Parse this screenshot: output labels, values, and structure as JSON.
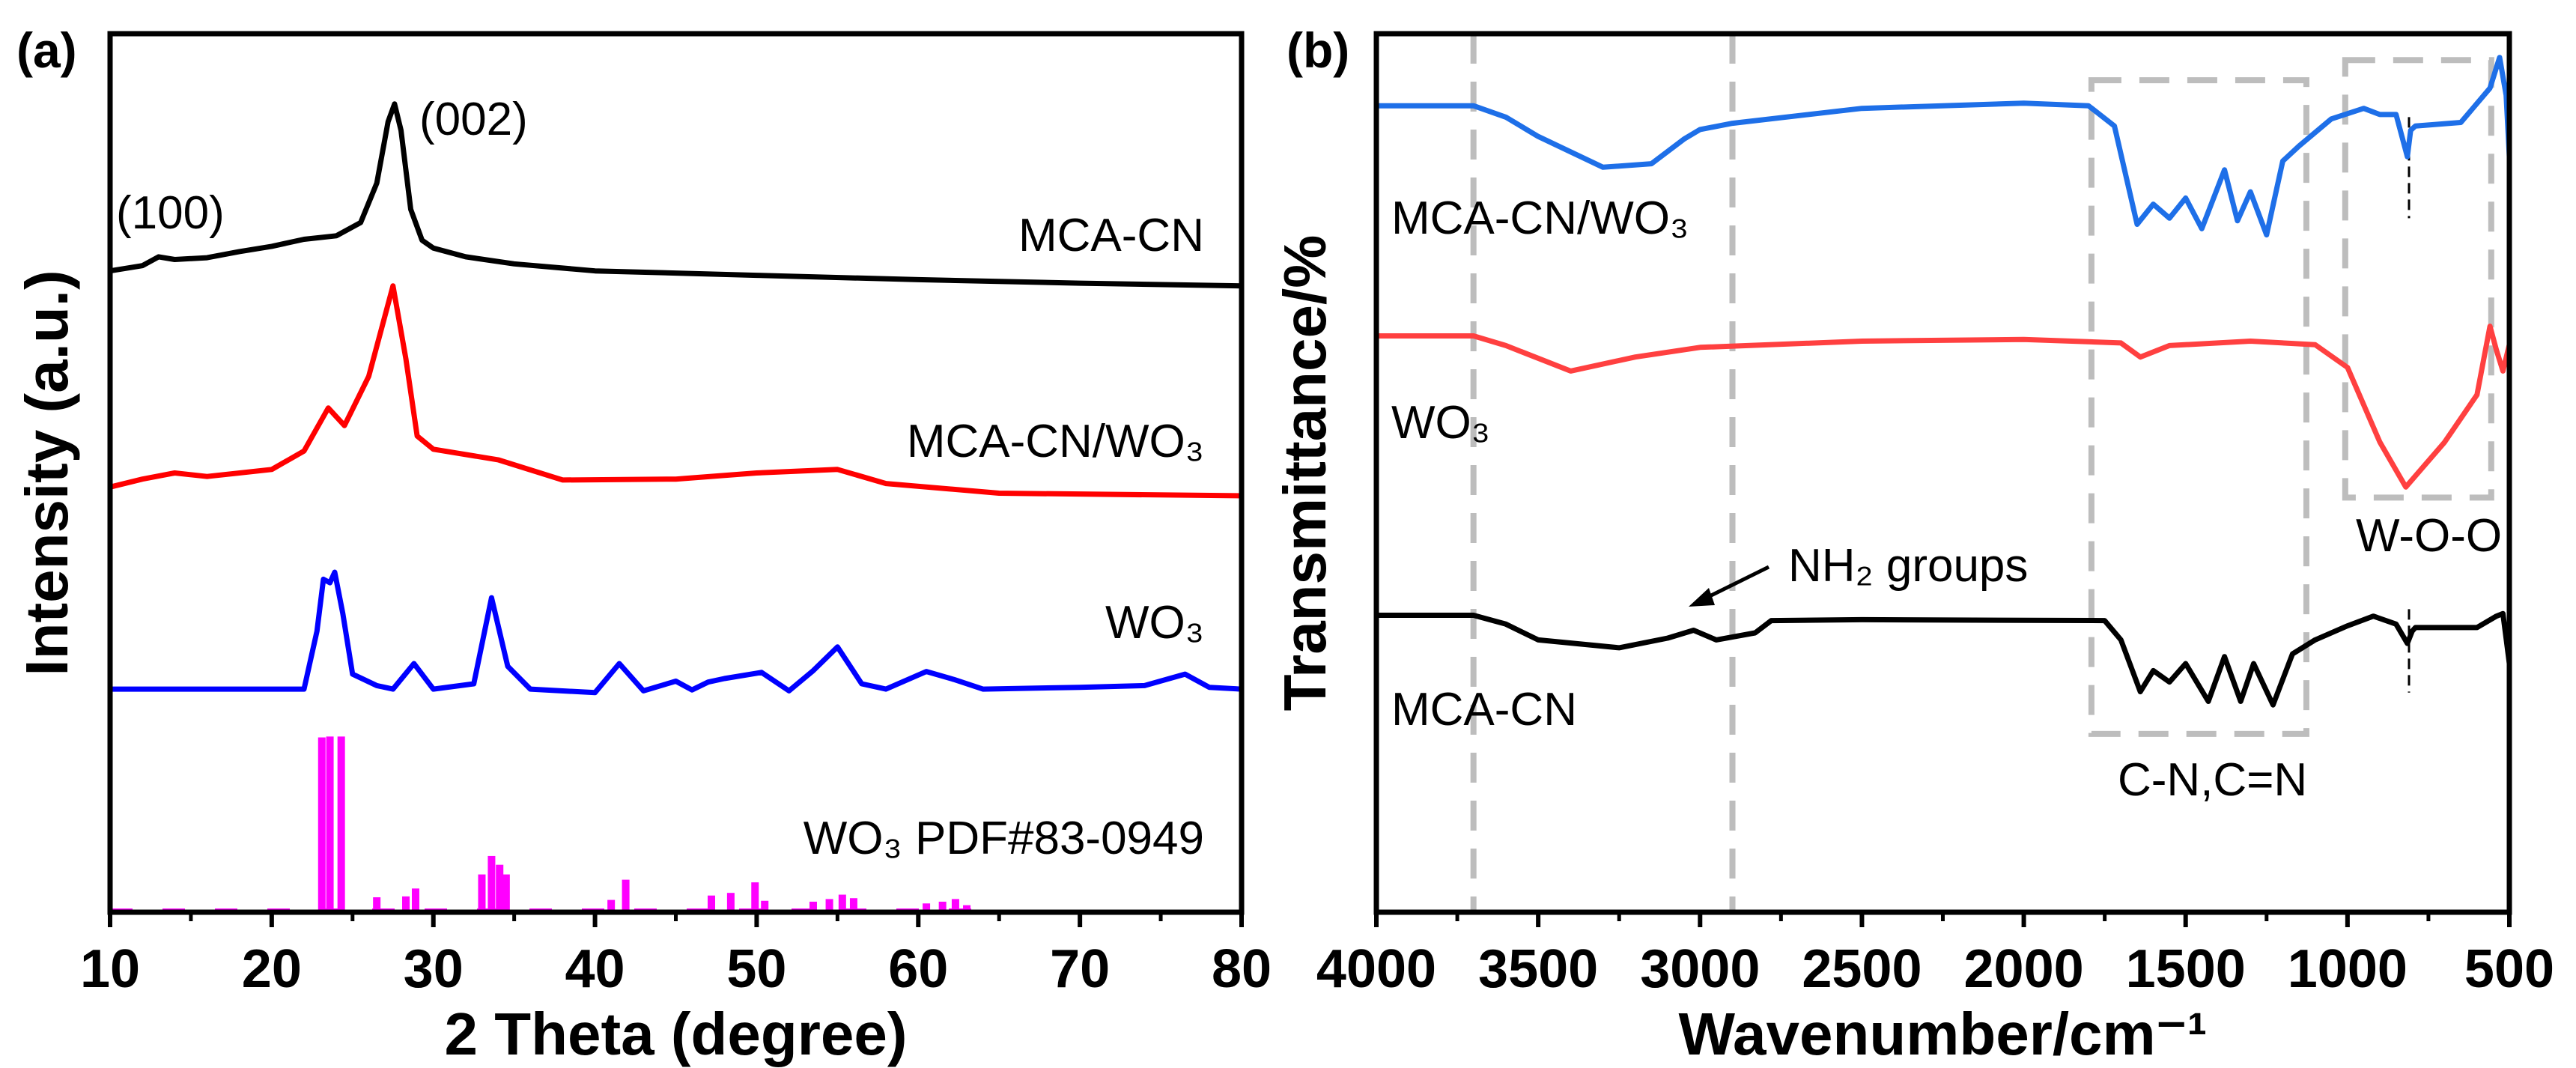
{
  "chart_data": [
    {
      "panel_label": "(a)",
      "type": "line",
      "xlabel": "2 Theta (degree)",
      "ylabel": "Intensity (a.u.)",
      "xlim": [
        10,
        80
      ],
      "ylim": [
        0,
        100
      ],
      "xticks": [
        "10",
        "20",
        "30",
        "40",
        "50",
        "60",
        "70",
        "80"
      ],
      "grid": false,
      "annotations": [
        {
          "text": "(002)",
          "x": 29.5,
          "y": 91
        },
        {
          "text": "(100)",
          "x": 11,
          "y": 78
        }
      ],
      "series": [
        {
          "name": "MCA-CN",
          "color": "#000000",
          "x": [
            10,
            12,
            13,
            14,
            16,
            18,
            20,
            22,
            24,
            25.5,
            26.5,
            27.2,
            27.6,
            28,
            28.6,
            29.3,
            30,
            32,
            35,
            40,
            50,
            60,
            70,
            80
          ],
          "y": [
            73,
            73.6,
            74.6,
            74.3,
            74.5,
            75.2,
            75.8,
            76.6,
            77,
            78.5,
            83,
            90,
            92,
            89,
            80,
            76.5,
            75.6,
            74.6,
            73.8,
            73,
            72.5,
            72,
            71.6,
            71.3
          ]
        },
        {
          "name": "MCA-CN/WO₃",
          "color": "#ff0000",
          "x": [
            10,
            12,
            14,
            16,
            20,
            22,
            23.5,
            24.5,
            26,
            27.5,
            28.3,
            29,
            30,
            34,
            38,
            45,
            50,
            55,
            58,
            65,
            80
          ],
          "y": [
            48.4,
            49.3,
            50,
            49.6,
            50.4,
            52.5,
            57.4,
            55.4,
            61,
            71.3,
            63,
            54.2,
            52.7,
            51.5,
            49.2,
            49.3,
            50,
            50.4,
            48.8,
            47.7,
            47.4
          ]
        },
        {
          "name": "WO₃",
          "color": "#0000ff",
          "x": [
            10,
            22,
            22.8,
            23.2,
            23.6,
            23.9,
            24.4,
            25,
            26.5,
            27.5,
            28.8,
            30,
            32.5,
            33.6,
            34.6,
            36,
            40,
            41.5,
            43,
            45,
            46,
            47,
            48,
            50.3,
            52,
            53.5,
            55,
            56.5,
            58,
            60.5,
            62.2,
            64,
            70,
            74,
            76.5,
            78,
            80
          ],
          "y": [
            25.4,
            25.4,
            32,
            37.9,
            37.5,
            38.7,
            34,
            27.1,
            25.8,
            25.4,
            28.3,
            25.4,
            26,
            35.8,
            28,
            25.4,
            25,
            28.3,
            25.2,
            26.3,
            25.3,
            26.2,
            26.6,
            27.3,
            25.2,
            27.5,
            30.2,
            26,
            25.4,
            27.4,
            26.5,
            25.4,
            25.6,
            25.8,
            27.1,
            25.6,
            25.4
          ]
        },
        {
          "name": "WO₃ PDF#83-0949",
          "type": "stick",
          "color": "#ff00ff",
          "x": [
            23.1,
            23.6,
            24.3,
            26.5,
            28.3,
            28.9,
            33,
            33.6,
            34.1,
            34.5,
            41,
            41.9,
            47.2,
            48.4,
            49.9,
            50.5,
            53.5,
            54.5,
            55.3,
            56,
            60.5,
            61.5,
            62.3,
            63
          ],
          "y": [
            19.9,
            20,
            20,
            1.7,
            1.8,
            2.7,
            4.3,
            6.4,
            5.4,
            4.3,
            1.4,
            3.7,
            1.9,
            2.2,
            3.4,
            1.3,
            1.2,
            1.5,
            2,
            1.6,
            1,
            1.2,
            1.5,
            0.8
          ]
        }
      ],
      "series_labels": [
        "MCA-CN",
        "MCA-CN/WO₃",
        "WO₃",
        "WO₃ PDF#83-0949"
      ]
    },
    {
      "panel_label": "(b)",
      "type": "line",
      "xlabel": "Wavenumber/cm⁻¹",
      "ylabel": "Transmittance/%",
      "xlim": [
        4000,
        500
      ],
      "ylim": [
        0,
        100
      ],
      "xticks": [
        "4000",
        "3500",
        "3000",
        "2500",
        "2000",
        "1500",
        "1000",
        "500"
      ],
      "grid": false,
      "reference_lines": [
        3700,
        2900,
        810
      ],
      "boxes": [
        {
          "label": "C-N,C=N",
          "x": [
            1791,
            1127
          ],
          "y": [
            20.3,
            94.7
          ]
        },
        {
          "label": "W-O-O",
          "x": [
            1007,
            556
          ],
          "y": [
            47.2,
            97
          ]
        }
      ],
      "annotation": {
        "text": "NH₂ groups",
        "points_to": [
          3030,
          35
        ]
      },
      "series": [
        {
          "name": "MCA-CN/WO₃",
          "color": "#1e6fe8",
          "x": [
            4000,
            3700,
            3600,
            3500,
            3300,
            3150,
            3050,
            3000,
            2900,
            2500,
            2000,
            1800,
            1720,
            1650,
            1600,
            1550,
            1500,
            1450,
            1380,
            1340,
            1300,
            1250,
            1200,
            1150,
            1050,
            950,
            900,
            850,
            815,
            805,
            790,
            650,
            560,
            530,
            510,
            500
          ],
          "y": [
            91.8,
            91.8,
            90.5,
            88.3,
            84.8,
            85.2,
            88,
            89.1,
            89.8,
            91.5,
            92.1,
            91.8,
            89.5,
            78.3,
            80.6,
            79,
            81.3,
            77.8,
            84.5,
            78.7,
            82,
            77.1,
            85.5,
            87.2,
            90.3,
            91.5,
            90.8,
            90.8,
            86,
            89,
            89.5,
            89.9,
            93.8,
            97.3,
            93,
            86
          ]
        },
        {
          "name": "WO₃",
          "color": "#ff4040",
          "x": [
            4000,
            3700,
            3600,
            3400,
            3200,
            3000,
            2500,
            2000,
            1700,
            1640,
            1550,
            1300,
            1100,
            1000,
            900,
            820,
            700,
            600,
            560,
            540,
            520,
            500
          ],
          "y": [
            65.6,
            65.6,
            64.5,
            61.6,
            63.2,
            64.3,
            65,
            65.2,
            64.8,
            63.2,
            64.5,
            65,
            64.6,
            62,
            53.5,
            48.4,
            53.5,
            58.9,
            66.7,
            64,
            61.6,
            64.6
          ]
        },
        {
          "name": "MCA-CN",
          "color": "#000000",
          "x": [
            4000,
            3700,
            3600,
            3500,
            3250,
            3100,
            3020,
            2950,
            2830,
            2780,
            2500,
            1750,
            1700,
            1640,
            1600,
            1550,
            1500,
            1430,
            1380,
            1330,
            1290,
            1230,
            1170,
            1100,
            1000,
            920,
            850,
            815,
            800,
            790,
            600,
            540,
            520,
            500
          ],
          "y": [
            33.8,
            33.8,
            32.8,
            31,
            30.1,
            31.2,
            32.1,
            31,
            31.8,
            33.2,
            33.3,
            33.2,
            31,
            25.1,
            27.5,
            26.2,
            28.3,
            24,
            29.1,
            24,
            28.3,
            23.6,
            29.4,
            31,
            32.6,
            33.7,
            32.8,
            30.6,
            32,
            32.4,
            32.4,
            33.7,
            34,
            28.3
          ]
        }
      ],
      "series_labels": [
        "MCA-CN/WO₃",
        "WO₃",
        "MCA-CN"
      ]
    }
  ]
}
